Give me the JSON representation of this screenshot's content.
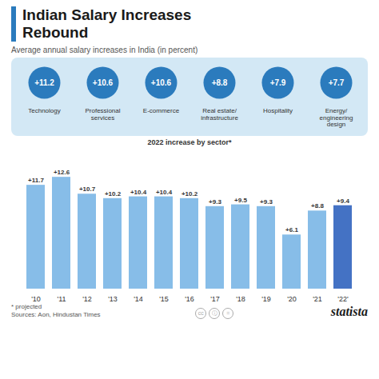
{
  "chart_data": [
    {
      "type": "bar",
      "title": "Indian Salary Increases\nRebound",
      "subtitle": "Average annual salary increases in India (in percent)",
      "categories": [
        "'10",
        "'11",
        "'12",
        "'13",
        "'14",
        "'15",
        "'16",
        "'17",
        "'18",
        "'19",
        "'20",
        "'21",
        "'22'"
      ],
      "values": [
        11.7,
        12.6,
        10.7,
        10.2,
        10.4,
        10.4,
        10.2,
        9.3,
        9.5,
        9.3,
        6.1,
        8.8,
        9.4
      ],
      "value_labels": [
        "+11.7",
        "+12.6",
        "+10.7",
        "+10.2",
        "+10.4",
        "+10.4",
        "+10.2",
        "+9.3",
        "+9.5",
        "+9.3",
        "+6.1",
        "+8.8",
        "+9.4"
      ],
      "colors": [
        "#87BDE8",
        "#87BDE8",
        "#87BDE8",
        "#87BDE8",
        "#87BDE8",
        "#87BDE8",
        "#87BDE8",
        "#87BDE8",
        "#87BDE8",
        "#87BDE8",
        "#87BDE8",
        "#87BDE8",
        "#4472C4"
      ],
      "ylim": [
        0,
        15.5
      ],
      "tick_labels": "x",
      "grid": false,
      "data_labels": true,
      "annotations": [
        "* projected",
        "Sources: Aon, Hindustan Times",
        "cc",
        "ⓘ",
        "=",
        "statista"
      ]
    },
    {
      "type": "dot",
      "title": "2022 increase by sector*",
      "categories": [
        "Technology",
        "Professional\nservices",
        "E-commerce",
        "Real estate/\ninfrastructure",
        "Hospitality",
        "Energy/\nengineering\ndesign"
      ],
      "values": [
        11.2,
        10.6,
        10.6,
        8.8,
        7.9,
        7.7
      ],
      "value_labels": [
        "+11.2",
        "+10.6",
        "+10.6",
        "+8.8",
        "+7.9",
        "+7.7"
      ],
      "color": "#2B7BBD",
      "tick_labels": "x",
      "data_labels": true
    }
  ]
}
